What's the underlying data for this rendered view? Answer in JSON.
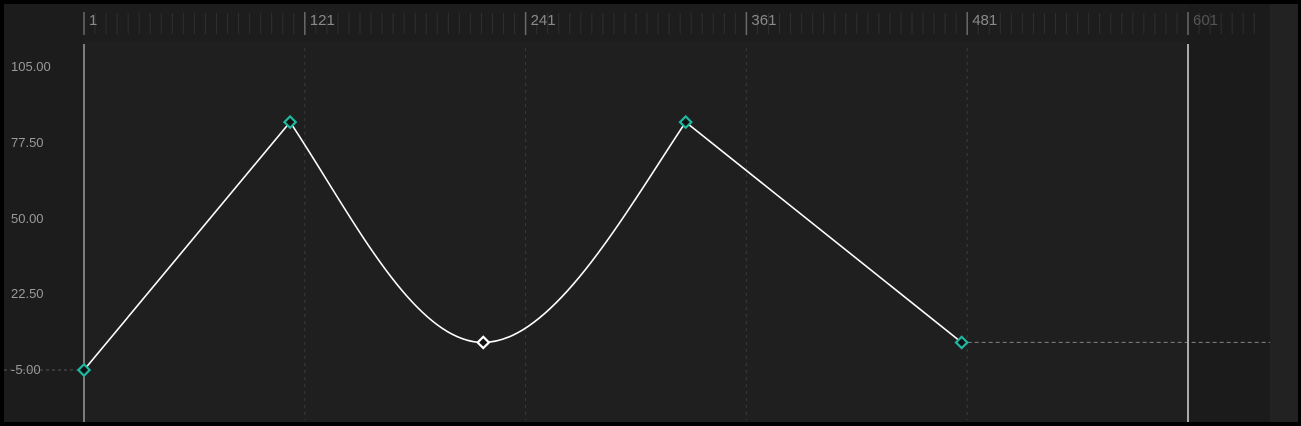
{
  "ruler": {
    "labels": [
      "1",
      "121",
      "241",
      "361",
      "481",
      "601"
    ],
    "frames": [
      1,
      121,
      241,
      361,
      481,
      601
    ]
  },
  "value_axis": {
    "labels": [
      "105.00",
      "77.50",
      "50.00",
      "22.50",
      "-5.00"
    ],
    "values": [
      105,
      77.5,
      50,
      22.5,
      -5
    ]
  },
  "playhead_frame": 601,
  "keyframes": [
    {
      "frame": 1,
      "value": -5,
      "selected": false
    },
    {
      "frame": 113,
      "value": 85,
      "selected": false
    },
    {
      "frame": 218,
      "value": 5,
      "selected": true
    },
    {
      "frame": 328,
      "value": 85,
      "selected": false
    },
    {
      "frame": 478,
      "value": 5,
      "selected": false
    }
  ],
  "colors": {
    "keyframe": "#1fb8a0",
    "selected_keyframe": "#ffffff",
    "curve": "#ffffff",
    "background": "#1f1f1f"
  }
}
